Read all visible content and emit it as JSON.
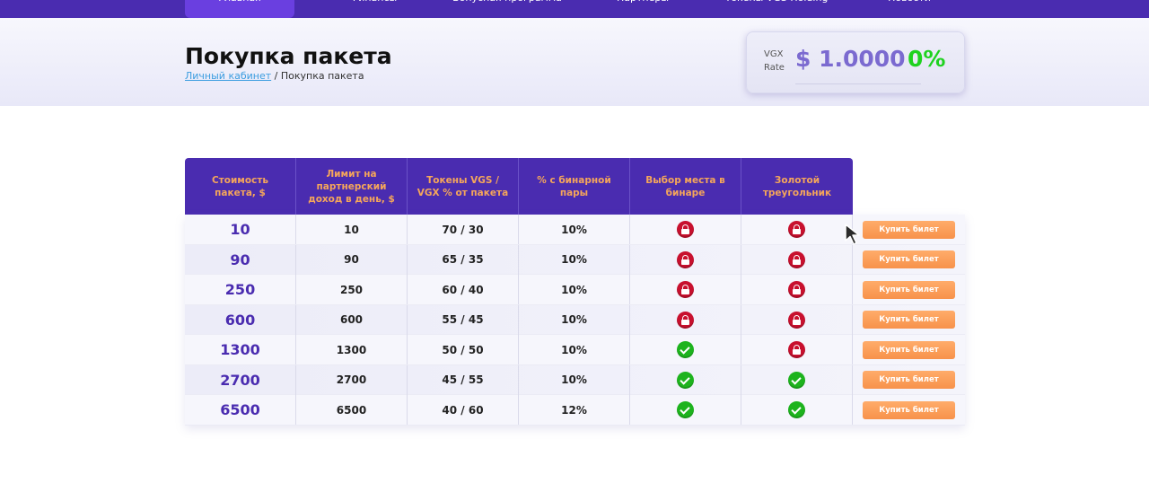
{
  "nav": {
    "items": [
      {
        "label": "Главная",
        "active": true
      },
      {
        "label": "Финансы",
        "active": false
      },
      {
        "label": "Бонусная программа",
        "active": false
      },
      {
        "label": "Партнеры",
        "active": false
      },
      {
        "label": "Токены VGS Holding",
        "active": false
      },
      {
        "label": "Новости",
        "active": false
      }
    ]
  },
  "header": {
    "title": "Покупка пакета",
    "breadcrumb_link": "Личный кабинет",
    "breadcrumb_sep": " / ",
    "breadcrumb_current": "Покупка пакета"
  },
  "rate": {
    "label_line1": "VGX",
    "label_line2": "Rate",
    "value": "$ 1.0000",
    "change": "0%"
  },
  "table": {
    "headers": [
      "Стоимость пакета, $",
      "Лимит на партнерский доход в день, $",
      "Токены VGS / VGX % от пакета",
      "% с бинарной пары",
      "Выбор места в бинаре",
      "Золотой треугольник"
    ],
    "rows": [
      {
        "price": "10",
        "limit": "10",
        "tokens": "70 / 30",
        "binary": "10%",
        "place": "lock-icon",
        "triangle": "lock-icon",
        "button": "Купить билет"
      },
      {
        "price": "90",
        "limit": "90",
        "tokens": "65 / 35",
        "binary": "10%",
        "place": "lock-icon",
        "triangle": "lock-icon",
        "button": "Купить билет"
      },
      {
        "price": "250",
        "limit": "250",
        "tokens": "60 / 40",
        "binary": "10%",
        "place": "lock-icon",
        "triangle": "lock-icon",
        "button": "Купить билет"
      },
      {
        "price": "600",
        "limit": "600",
        "tokens": "55 / 45",
        "binary": "10%",
        "place": "lock-icon",
        "triangle": "lock-icon",
        "button": "Купить билет"
      },
      {
        "price": "1300",
        "limit": "1300",
        "tokens": "50 / 50",
        "binary": "10%",
        "place": "check-icon",
        "triangle": "lock-icon",
        "button": "Купить билет"
      },
      {
        "price": "2700",
        "limit": "2700",
        "tokens": "45 / 55",
        "binary": "10%",
        "place": "check-icon",
        "triangle": "check-icon",
        "button": "Купить билет"
      },
      {
        "price": "6500",
        "limit": "6500",
        "tokens": "40 / 60",
        "binary": "12%",
        "place": "check-icon",
        "triangle": "check-icon",
        "button": "Купить билет"
      }
    ]
  },
  "colors": {
    "brand": "#4a2cb0",
    "header_text": "#f5a65a",
    "rate_value": "#7b6ad0",
    "rate_change": "#1fd21f",
    "lock": "#c8102e",
    "check": "#1db31d",
    "button": "#f7924b"
  }
}
